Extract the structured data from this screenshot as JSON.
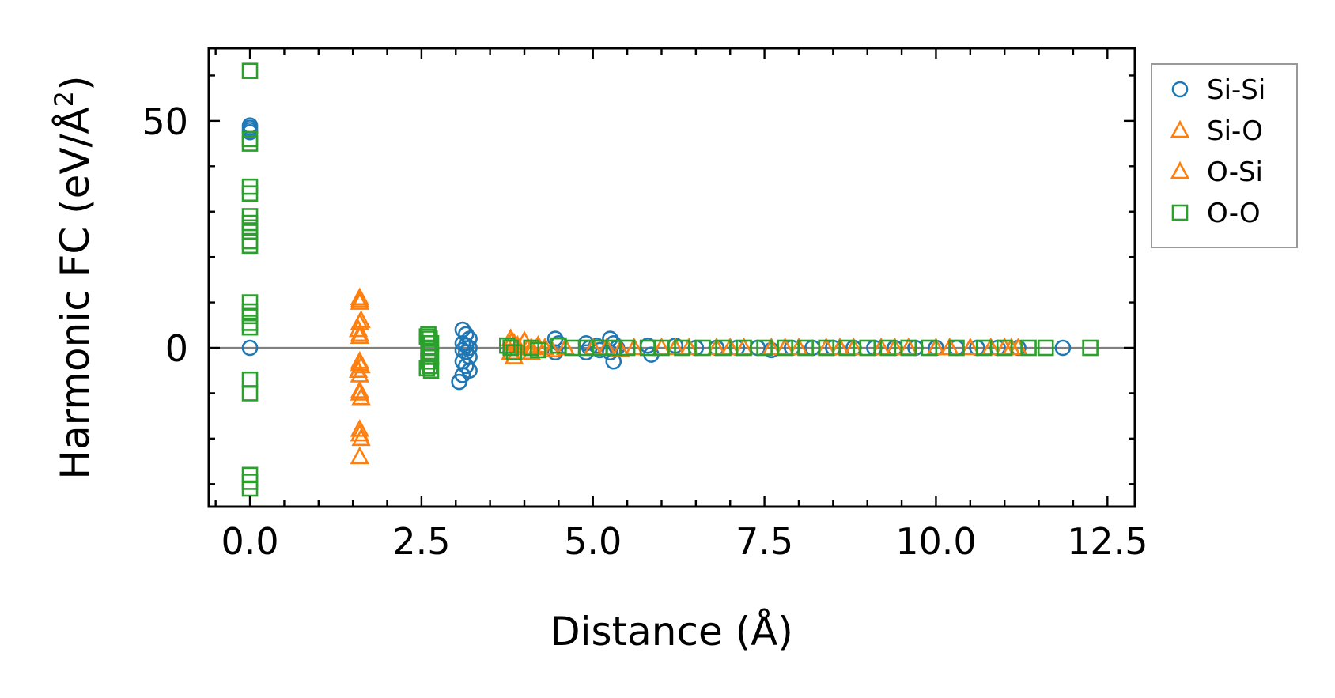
{
  "chart_data": {
    "type": "scatter",
    "title": "",
    "xlabel": "Distance (Å)",
    "ylabel_main": "Harmonic FC (eV/Å",
    "ylabel_sup": "2",
    "ylabel_close": ")",
    "xlim": [
      -0.6,
      12.9
    ],
    "ylim": [
      -35,
      66
    ],
    "xticks": [
      0.0,
      2.5,
      5.0,
      7.5,
      10.0,
      12.5
    ],
    "xtick_labels": [
      "0.0",
      "2.5",
      "5.0",
      "7.5",
      "10.0",
      "12.5"
    ],
    "xminor_step": 0.5,
    "yticks": [
      0,
      50
    ],
    "ytick_labels": [
      "0",
      "50"
    ],
    "yminor_step": 10,
    "zero_line": true,
    "legend_position": "outside-right-top",
    "series": [
      {
        "name": "Si-Si",
        "marker": "circle",
        "color": "#1f77b4",
        "points": [
          [
            0,
            49
          ],
          [
            0,
            48.5
          ],
          [
            0,
            48
          ],
          [
            0,
            47.5
          ],
          [
            0,
            0
          ],
          [
            3.1,
            4
          ],
          [
            3.15,
            3
          ],
          [
            3.2,
            2
          ],
          [
            3.1,
            1
          ],
          [
            3.15,
            0.5
          ],
          [
            3.2,
            0
          ],
          [
            3.1,
            -0.5
          ],
          [
            3.15,
            -1
          ],
          [
            3.2,
            -2
          ],
          [
            3.1,
            -3
          ],
          [
            3.15,
            -4
          ],
          [
            3.2,
            -5
          ],
          [
            3.1,
            -6
          ],
          [
            3.05,
            -7.5
          ],
          [
            4.45,
            2
          ],
          [
            4.5,
            1
          ],
          [
            4.45,
            -1
          ],
          [
            4.9,
            1
          ],
          [
            4.95,
            0
          ],
          [
            4.9,
            -1
          ],
          [
            5.05,
            0.5
          ],
          [
            5.1,
            -0.5
          ],
          [
            5.25,
            2
          ],
          [
            5.3,
            1
          ],
          [
            5.25,
            -1
          ],
          [
            5.3,
            -3
          ],
          [
            5.35,
            0
          ],
          [
            5.8,
            0.5
          ],
          [
            5.85,
            -1.5
          ],
          [
            6.2,
            0.5
          ],
          [
            6.5,
            0
          ],
          [
            6.8,
            0
          ],
          [
            7.1,
            0
          ],
          [
            7.4,
            0
          ],
          [
            7.6,
            -0.5
          ],
          [
            7.9,
            0
          ],
          [
            8.2,
            0
          ],
          [
            8.5,
            0
          ],
          [
            8.8,
            0
          ],
          [
            9.1,
            0
          ],
          [
            9.4,
            0
          ],
          [
            9.7,
            0
          ],
          [
            10.0,
            0
          ],
          [
            10.3,
            0
          ],
          [
            10.6,
            0
          ],
          [
            10.9,
            0
          ],
          [
            11.2,
            0
          ],
          [
            11.85,
            0
          ]
        ]
      },
      {
        "name": "Si-O",
        "marker": "triangle",
        "color": "#ff7f0e",
        "points": [
          [
            1.6,
            11
          ],
          [
            1.6,
            10
          ],
          [
            1.62,
            6
          ],
          [
            1.58,
            4
          ],
          [
            1.6,
            3
          ],
          [
            1.6,
            -3
          ],
          [
            1.62,
            -4
          ],
          [
            1.58,
            -5
          ],
          [
            1.6,
            -6
          ],
          [
            1.6,
            -10
          ],
          [
            1.62,
            -11
          ],
          [
            1.6,
            -18
          ],
          [
            1.62,
            -20
          ],
          [
            1.6,
            -24
          ],
          [
            3.8,
            2
          ],
          [
            3.85,
            1
          ],
          [
            3.8,
            -1
          ],
          [
            3.85,
            -2
          ],
          [
            4.0,
            1.5
          ],
          [
            4.05,
            0
          ],
          [
            4.1,
            -1
          ],
          [
            4.2,
            0.5
          ],
          [
            4.3,
            0
          ],
          [
            4.6,
            0
          ],
          [
            5.0,
            0
          ],
          [
            5.4,
            -0.5
          ],
          [
            5.6,
            0
          ],
          [
            6.0,
            0
          ],
          [
            6.4,
            0
          ],
          [
            6.8,
            0
          ],
          [
            7.2,
            0
          ],
          [
            7.6,
            0
          ],
          [
            8.0,
            0
          ],
          [
            8.4,
            0
          ],
          [
            8.8,
            0
          ],
          [
            9.2,
            0
          ],
          [
            9.6,
            0
          ],
          [
            10.0,
            0
          ],
          [
            10.5,
            0
          ],
          [
            10.8,
            0
          ],
          [
            11.0,
            0
          ],
          [
            11.2,
            0
          ]
        ]
      },
      {
        "name": "O-Si",
        "marker": "triangle",
        "color": "#ff7f0e",
        "points": [
          [
            1.6,
            10.5
          ],
          [
            1.6,
            5.5
          ],
          [
            1.6,
            2.5
          ],
          [
            1.6,
            -3.5
          ],
          [
            1.6,
            -9.5
          ],
          [
            1.6,
            -19
          ],
          [
            3.82,
            1.5
          ],
          [
            3.9,
            0.5
          ],
          [
            4.1,
            0
          ],
          [
            4.4,
            -0.5
          ],
          [
            5.2,
            0
          ],
          [
            6.2,
            0
          ],
          [
            7.0,
            0
          ],
          [
            7.8,
            0
          ],
          [
            8.6,
            0
          ],
          [
            9.4,
            0
          ],
          [
            10.2,
            0
          ],
          [
            11.1,
            0
          ]
        ]
      },
      {
        "name": "O-O",
        "marker": "square",
        "color": "#2ca02c",
        "points": [
          [
            0,
            61
          ],
          [
            0,
            46
          ],
          [
            0,
            45
          ],
          [
            0,
            35.5
          ],
          [
            0,
            34
          ],
          [
            0,
            29
          ],
          [
            0,
            27.5
          ],
          [
            0,
            26.5
          ],
          [
            0,
            25.5
          ],
          [
            0,
            23.5
          ],
          [
            0,
            22.5
          ],
          [
            0,
            10
          ],
          [
            0,
            8
          ],
          [
            0,
            7
          ],
          [
            0,
            5.5
          ],
          [
            0,
            4.5
          ],
          [
            0,
            -7
          ],
          [
            0,
            -10
          ],
          [
            0,
            -28
          ],
          [
            0,
            -29.5
          ],
          [
            0,
            -31
          ],
          [
            2.6,
            3
          ],
          [
            2.62,
            2
          ],
          [
            2.64,
            1
          ],
          [
            2.6,
            0
          ],
          [
            2.62,
            -1
          ],
          [
            2.64,
            -2
          ],
          [
            2.6,
            -3
          ],
          [
            2.62,
            -4
          ],
          [
            2.64,
            -5
          ],
          [
            2.58,
            2.5
          ],
          [
            2.58,
            -4.5
          ],
          [
            3.75,
            0.5
          ],
          [
            3.8,
            0
          ],
          [
            3.85,
            -1
          ],
          [
            4.1,
            0
          ],
          [
            4.2,
            -0.5
          ],
          [
            4.5,
            0.5
          ],
          [
            4.7,
            0
          ],
          [
            4.9,
            0
          ],
          [
            5.1,
            0
          ],
          [
            5.3,
            0
          ],
          [
            5.5,
            0
          ],
          [
            5.8,
            0
          ],
          [
            6.0,
            0
          ],
          [
            6.3,
            0
          ],
          [
            6.6,
            0
          ],
          [
            6.9,
            0
          ],
          [
            7.2,
            0
          ],
          [
            7.5,
            0
          ],
          [
            7.8,
            0
          ],
          [
            8.1,
            0
          ],
          [
            8.4,
            0
          ],
          [
            8.7,
            0
          ],
          [
            9.0,
            0
          ],
          [
            9.3,
            0
          ],
          [
            9.6,
            0
          ],
          [
            9.9,
            0
          ],
          [
            10.3,
            0
          ],
          [
            10.7,
            0
          ],
          [
            11.0,
            0
          ],
          [
            11.35,
            0
          ],
          [
            11.6,
            0
          ],
          [
            12.25,
            0
          ]
        ]
      }
    ]
  }
}
